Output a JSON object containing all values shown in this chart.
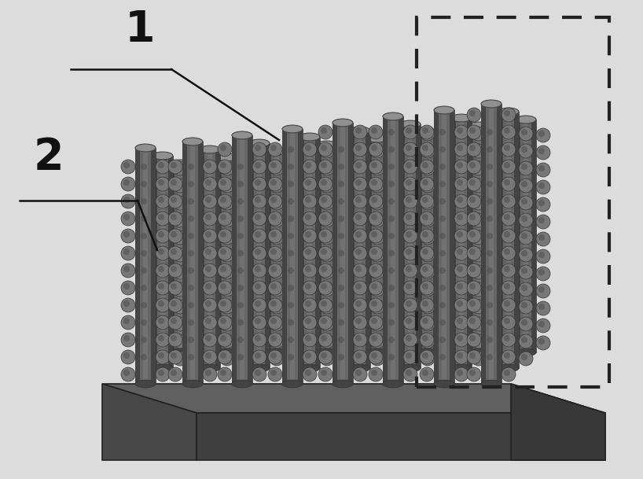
{
  "bg_color": "#dcdcdc",
  "base_top_color": "#606060",
  "base_front_color": "#484848",
  "base_bottom_color": "#404040",
  "base_right_color": "#383838",
  "nanowire_color": "#666666",
  "nanowire_dark_color": "#444444",
  "nanowire_light_color": "#909090",
  "fullerene_color": "#787878",
  "fullerene_dark_color": "#505050",
  "label_color": "#111111",
  "dashed_rect_color": "#222222",
  "label1": "1",
  "label2": "2"
}
